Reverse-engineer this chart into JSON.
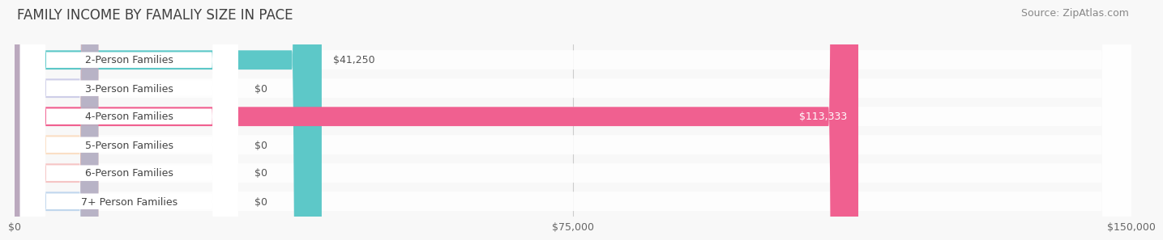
{
  "title": "FAMILY INCOME BY FAMALIY SIZE IN PACE",
  "source": "Source: ZipAtlas.com",
  "categories": [
    "2-Person Families",
    "3-Person Families",
    "4-Person Families",
    "5-Person Families",
    "6-Person Families",
    "7+ Person Families"
  ],
  "values": [
    41250,
    0,
    113333,
    0,
    0,
    0
  ],
  "bar_colors": [
    "#5dc8c8",
    "#a8a8d8",
    "#f06090",
    "#f8c898",
    "#f09898",
    "#90b8e0"
  ],
  "zero_bar_colors": [
    "#5dc8c8",
    "#a8a8d8",
    "#f06090",
    "#f8c898",
    "#f09898",
    "#90b8e0"
  ],
  "value_labels": [
    "$41,250",
    "$0",
    "$113,333",
    "$0",
    "$0",
    "$0"
  ],
  "xlim": [
    0,
    150000
  ],
  "xticks": [
    0,
    75000,
    150000
  ],
  "xticklabels": [
    "$0",
    "$75,000",
    "$150,000"
  ],
  "background_color": "#f0f0f0",
  "bar_bg_color": "#e8e8e8",
  "title_fontsize": 12,
  "source_fontsize": 9,
  "label_fontsize": 9,
  "value_fontsize": 9,
  "figsize": [
    14.06,
    3.05
  ],
  "dpi": 100
}
